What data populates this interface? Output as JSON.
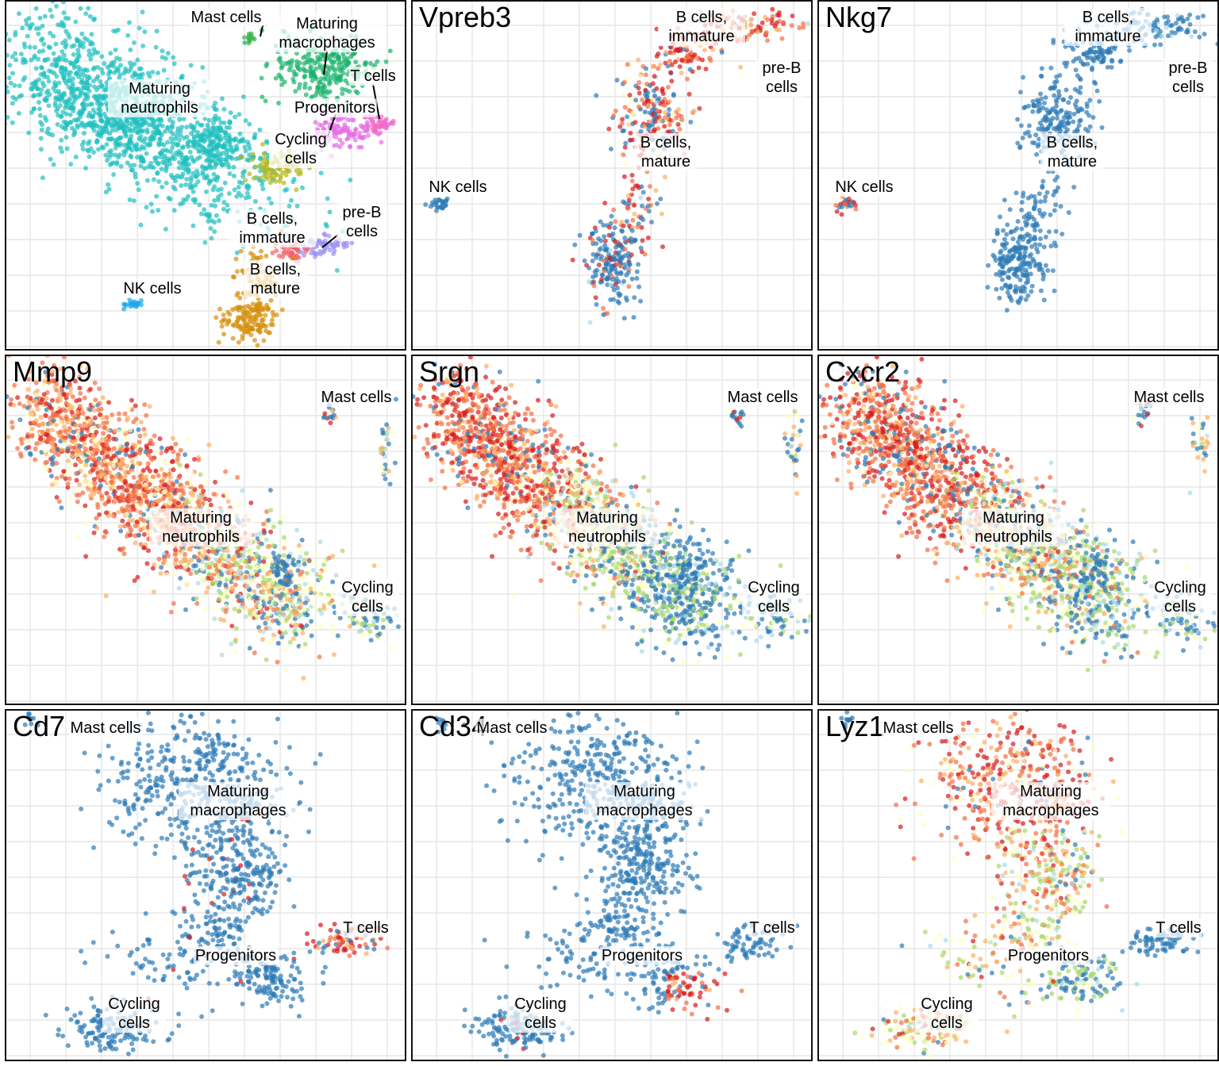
{
  "chart_data": [
    {
      "type": "scatter",
      "title": "",
      "encoding": "cluster",
      "annotations": [
        {
          "text": "Mast cells"
        },
        {
          "text": "Maturing macrophages"
        },
        {
          "text": "T cells"
        },
        {
          "text": "Maturing neutrophils"
        },
        {
          "text": "Progenitors"
        },
        {
          "text": "Cycling cells"
        },
        {
          "text": "B cells, immature"
        },
        {
          "text": "pre-B cells"
        },
        {
          "text": "B cells, mature"
        },
        {
          "text": "NK cells"
        }
      ],
      "cluster_colors": {
        "Maturing neutrophils": "#1fbfbf",
        "Maturing macrophages": "#19b36b",
        "Mast cells": "#39b54a",
        "T cells": "#f26bc8",
        "Progenitors": "#e46ee6",
        "Cycling cells": "#b5b51d",
        "B cells, immature": "#f2646a",
        "pre-B cells": "#9b8ef5",
        "B cells, mature": "#d4900b",
        "NK cells": "#1aa6e8"
      }
    },
    {
      "type": "scatter",
      "title": "Vpreb3",
      "encoding": "expression",
      "annotations": [
        {
          "text": "B cells, immature"
        },
        {
          "text": "pre-B cells"
        },
        {
          "text": "B cells, mature"
        },
        {
          "text": "NK cells"
        }
      ]
    },
    {
      "type": "scatter",
      "title": "Nkg7",
      "encoding": "expression",
      "annotations": [
        {
          "text": "B cells, immature"
        },
        {
          "text": "pre-B cells"
        },
        {
          "text": "B cells, mature"
        },
        {
          "text": "NK cells"
        }
      ]
    },
    {
      "type": "scatter",
      "title": "Mmp9",
      "encoding": "expression",
      "annotations": [
        {
          "text": "Mast cells"
        },
        {
          "text": "Maturing neutrophils"
        },
        {
          "text": "Cycling cells"
        }
      ]
    },
    {
      "type": "scatter",
      "title": "Srgn",
      "encoding": "expression",
      "annotations": [
        {
          "text": "Mast cells"
        },
        {
          "text": "Maturing neutrophils"
        },
        {
          "text": "Cycling cells"
        }
      ]
    },
    {
      "type": "scatter",
      "title": "Cxcr2",
      "encoding": "expression",
      "annotations": [
        {
          "text": "Mast cells"
        },
        {
          "text": "Maturing neutrophils"
        },
        {
          "text": "Cycling cells"
        }
      ]
    },
    {
      "type": "scatter",
      "title": "Cd7",
      "encoding": "expression",
      "annotations": [
        {
          "text": "Mast cells"
        },
        {
          "text": "Maturing macrophages"
        },
        {
          "text": "T cells"
        },
        {
          "text": "Progenitors"
        },
        {
          "text": "Cycling cells"
        }
      ]
    },
    {
      "type": "scatter",
      "title": "Cd34",
      "encoding": "expression",
      "annotations": [
        {
          "text": "Mast cells"
        },
        {
          "text": "Maturing macrophages"
        },
        {
          "text": "T cells"
        },
        {
          "text": "Progenitors"
        },
        {
          "text": "Cycling cells"
        }
      ]
    },
    {
      "type": "scatter",
      "title": "Lyz1",
      "encoding": "expression",
      "annotations": [
        {
          "text": "Mast cells"
        },
        {
          "text": "Maturing macrophages"
        },
        {
          "text": "T cells"
        },
        {
          "text": "Progenitors"
        },
        {
          "text": "Cycling cells"
        }
      ]
    }
  ],
  "expression_palette": [
    "#2c7bb6",
    "#abd9e9",
    "#a6d96a",
    "#ffffbf",
    "#fdae61",
    "#f46d43",
    "#d7191c"
  ]
}
